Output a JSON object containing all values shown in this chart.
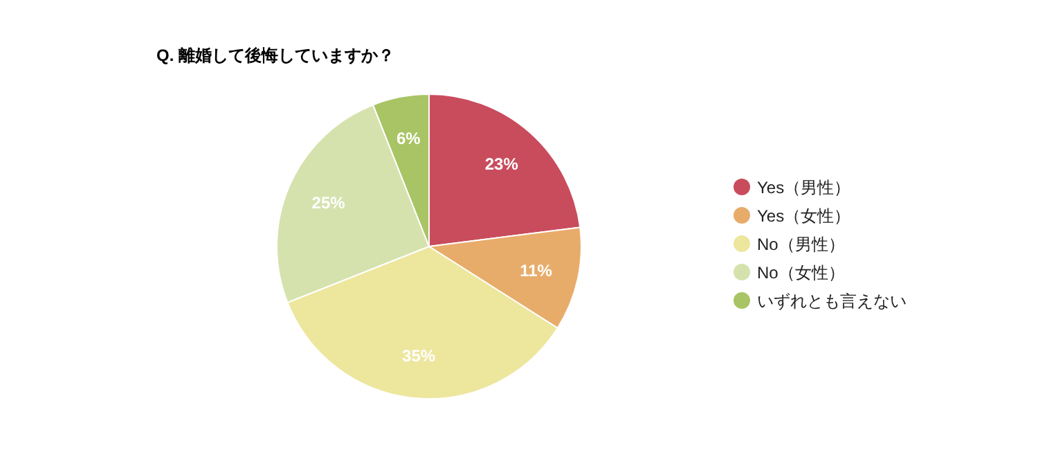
{
  "chart_data": {
    "type": "pie",
    "title": "Q. 離婚して後悔していますか？",
    "categories": [
      "Yes（男性）",
      "Yes（女性）",
      "No（男性）",
      "No（女性）",
      "いずれとも言えない"
    ],
    "values": [
      23,
      11,
      35,
      25,
      6
    ],
    "colors": [
      "#c94c5c",
      "#e8ac6a",
      "#ede69d",
      "#d5e2ad",
      "#a8c464"
    ],
    "value_labels": [
      "23%",
      "11%",
      "35%",
      "25%",
      "6%"
    ],
    "legend": "right"
  }
}
